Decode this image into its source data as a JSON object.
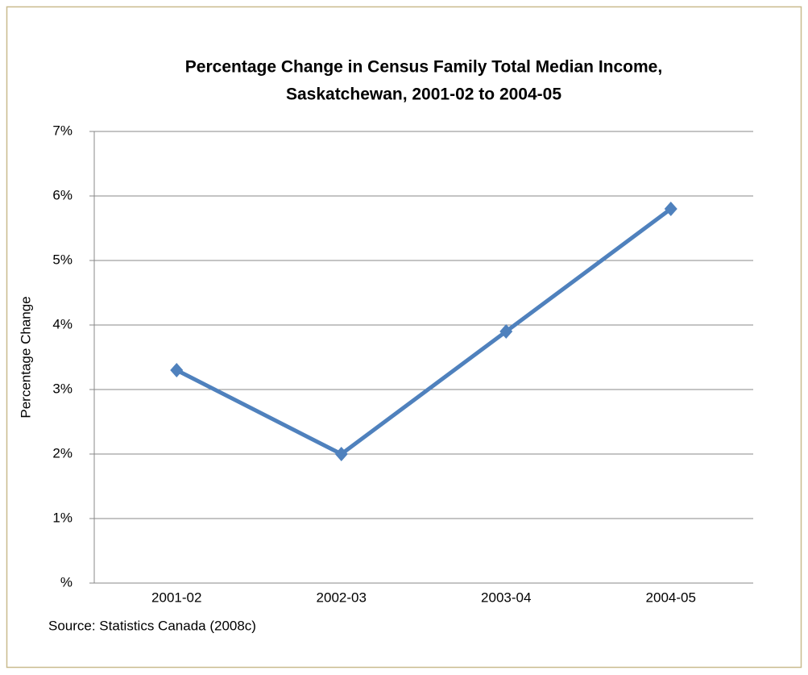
{
  "chart_data": {
    "type": "line",
    "title": [
      "Percentage Change in Census Family Total Median Income,",
      "Saskatchewan, 2001-02 to 2004-05"
    ],
    "y_label": "Percentage Change",
    "source": "Source: Statistics Canada (2008c)",
    "categories": [
      "2001-02",
      "2002-03",
      "2003-04",
      "2004-05"
    ],
    "values": [
      3.3,
      2.0,
      3.9,
      5.8
    ],
    "color": "#4f81bd",
    "ylim": [
      0,
      7
    ],
    "yticks": [
      {
        "value": 0,
        "label": "%"
      },
      {
        "value": 1,
        "label": "1%"
      },
      {
        "value": 2,
        "label": "2%"
      },
      {
        "value": 3,
        "label": "3%"
      },
      {
        "value": 4,
        "label": "4%"
      },
      {
        "value": 5,
        "label": "5%"
      },
      {
        "value": 6,
        "label": "6%"
      },
      {
        "value": 7,
        "label": "7%"
      }
    ],
    "grid": true
  }
}
